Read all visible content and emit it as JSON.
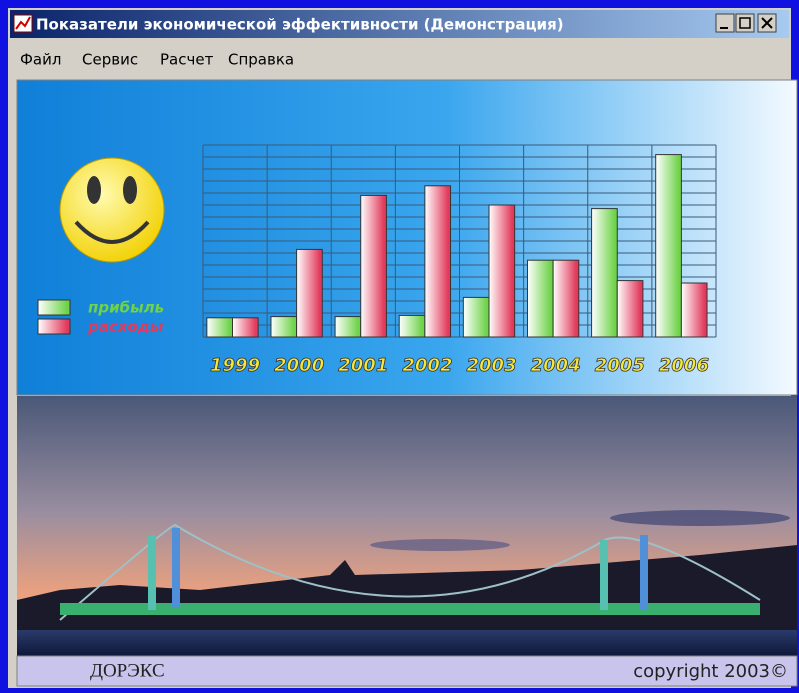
{
  "window": {
    "title": "Показатели экономической эффективности (Демонстрация)"
  },
  "menu": [
    "Файл",
    "Сервис",
    "Расчет",
    "Справка"
  ],
  "chart_data": {
    "type": "bar",
    "categories": [
      "1999",
      "2000",
      "2001",
      "2002",
      "2003",
      "2004",
      "2005",
      "2006"
    ],
    "series": [
      {
        "name": "прибыль",
        "color": "#6fd34a",
        "values": [
          1.6,
          1.7,
          1.7,
          1.8,
          3.3,
          6.4,
          10.7,
          15.2
        ]
      },
      {
        "name": "расходы",
        "color": "#e23a5c",
        "values": [
          1.6,
          7.3,
          11.8,
          12.6,
          11,
          6.4,
          4.7,
          4.5
        ]
      }
    ],
    "ylim": [
      0,
      16
    ],
    "yticks": [
      0,
      1,
      2,
      3,
      4,
      5,
      6,
      7,
      8,
      9,
      10,
      11,
      12,
      13,
      14,
      15,
      16
    ],
    "grid": true
  },
  "footer": {
    "left": "ДОРЭКС",
    "right": "copyright 2003©"
  }
}
